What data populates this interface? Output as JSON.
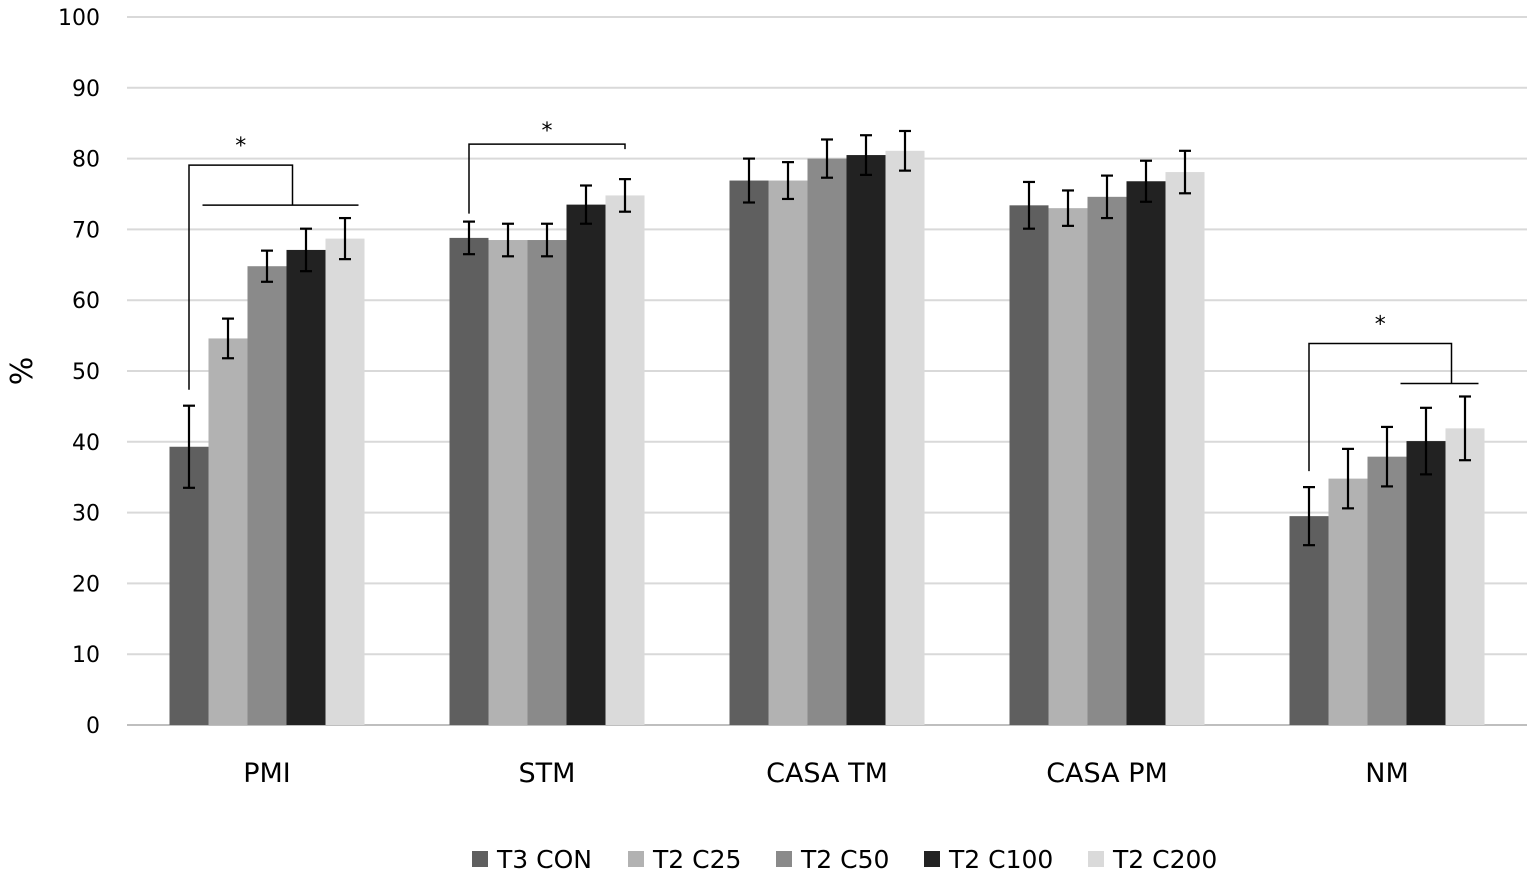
{
  "chart_data": {
    "type": "bar",
    "title": "",
    "xlabel": "",
    "ylabel": "%",
    "ylim": [
      0,
      100
    ],
    "yticks": [
      0,
      10,
      20,
      30,
      40,
      50,
      60,
      70,
      80,
      90,
      100
    ],
    "grid": true,
    "legend_position": "bottom",
    "categories": [
      "PMI",
      "STM",
      "CASA TM",
      "CASA PM",
      "NM"
    ],
    "series": [
      {
        "name": "T3 CON",
        "color": "#5f5f5f",
        "values": [
          39.3,
          68.8,
          76.9,
          73.4,
          29.5
        ],
        "errors": [
          5.8,
          2.3,
          3.1,
          3.3,
          4.1
        ]
      },
      {
        "name": "T2 C25",
        "color": "#b2b2b2",
        "values": [
          54.6,
          68.5,
          76.9,
          73.0,
          34.8
        ],
        "errors": [
          2.8,
          2.3,
          2.6,
          2.5,
          4.2
        ]
      },
      {
        "name": "T2 C50",
        "color": "#8a8a8a",
        "values": [
          64.8,
          68.5,
          80.0,
          74.6,
          37.9
        ],
        "errors": [
          2.2,
          2.3,
          2.7,
          3.0,
          4.2
        ]
      },
      {
        "name": "T2 C100",
        "color": "#222222",
        "values": [
          67.1,
          73.5,
          80.5,
          76.8,
          40.1
        ],
        "errors": [
          3.0,
          2.7,
          2.8,
          2.9,
          4.7
        ]
      },
      {
        "name": "T2 C200",
        "color": "#dadada",
        "values": [
          68.7,
          74.8,
          81.1,
          78.1,
          41.9
        ],
        "errors": [
          2.9,
          2.3,
          2.8,
          3.0,
          4.5
        ]
      }
    ],
    "annotations": [
      {
        "category": "PMI",
        "text": "*",
        "type": "significance",
        "from_series": [
          0
        ],
        "to_series": [
          1,
          2,
          3,
          4
        ]
      },
      {
        "category": "STM",
        "text": "*",
        "type": "significance",
        "from_series": [
          0
        ],
        "to_series": [
          4
        ]
      },
      {
        "category": "NM",
        "text": "*",
        "type": "significance",
        "from_series": [
          0
        ],
        "to_series": [
          3,
          4
        ]
      }
    ]
  }
}
